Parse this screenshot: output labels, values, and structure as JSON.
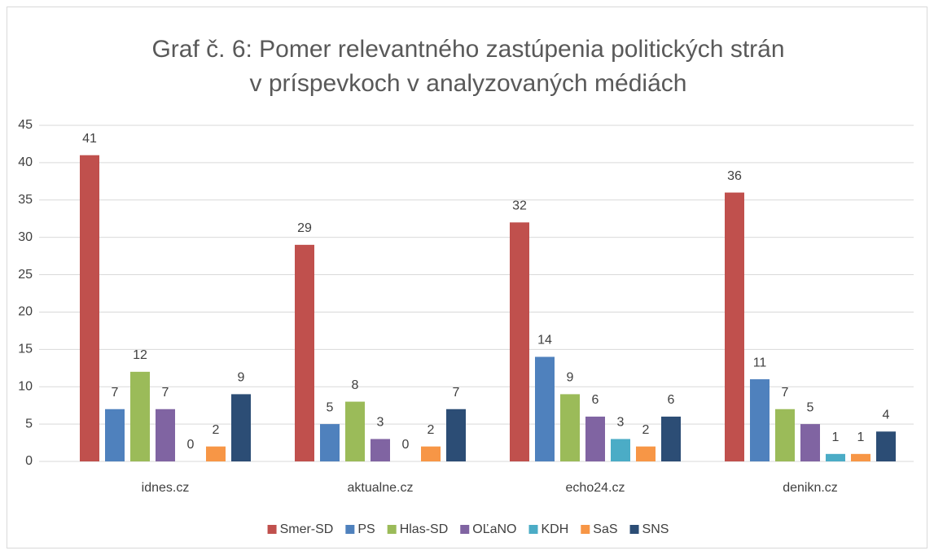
{
  "chart_data": {
    "type": "bar",
    "title": [
      "Graf č. 6: Pomer relevantného zastúpenia politických strán",
      "v príspevkoch v analyzovaných médiách"
    ],
    "categories": [
      "idnes.cz",
      "aktualne.cz",
      "echo24.cz",
      "denikn.cz"
    ],
    "series": [
      {
        "name": "Smer-SD",
        "color": "#c0504d",
        "values": [
          41,
          29,
          32,
          36
        ]
      },
      {
        "name": "PS",
        "color": "#4f81bd",
        "values": [
          7,
          5,
          14,
          11
        ]
      },
      {
        "name": "Hlas-SD",
        "color": "#9bbb59",
        "values": [
          12,
          8,
          9,
          7
        ]
      },
      {
        "name": "OĽaNO",
        "color": "#8064a2",
        "values": [
          7,
          3,
          6,
          5
        ]
      },
      {
        "name": "KDH",
        "color": "#4bacc6",
        "values": [
          0,
          0,
          3,
          1
        ]
      },
      {
        "name": "SaS",
        "color": "#f79646",
        "values": [
          2,
          2,
          2,
          1
        ]
      },
      {
        "name": "SNS",
        "color": "#2c4d75",
        "values": [
          9,
          7,
          6,
          4
        ]
      }
    ],
    "ylim": [
      0,
      45
    ],
    "yticks": [
      0,
      5,
      10,
      15,
      20,
      25,
      30,
      35,
      40,
      45
    ],
    "grid": true,
    "legend": "bottom"
  }
}
